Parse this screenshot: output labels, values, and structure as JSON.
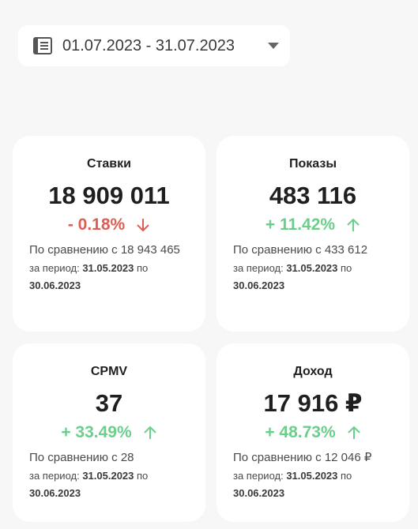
{
  "date_range": {
    "label": "01.07.2023 - 31.07.2023"
  },
  "cards": [
    {
      "title": "Ставки",
      "value": "18 909 011",
      "change": "- 0.18%",
      "trend": "down",
      "compare": "По сравнению с 18 943 465",
      "period_prefix": "за период: ",
      "period_from": "31.05.2023",
      "period_mid": " по ",
      "period_to": "30.06.2023"
    },
    {
      "title": "Показы",
      "value": "483 116",
      "change": "+ 11.42%",
      "trend": "up",
      "compare": "По сравнению с 433 612",
      "period_prefix": "за период: ",
      "period_from": "31.05.2023",
      "period_mid": " по ",
      "period_to": "30.06.2023"
    },
    {
      "title": "CPMV",
      "value": "37",
      "change": "+ 33.49%",
      "trend": "up",
      "compare": "По сравнению с 28",
      "period_prefix": "за период: ",
      "period_from": "31.05.2023",
      "period_mid": " по ",
      "period_to": "30.06.2023"
    },
    {
      "title": "Доход",
      "value": "17 916 ₽",
      "change": "+ 48.73%",
      "trend": "up",
      "compare": "По сравнению с 12 046 ₽",
      "period_prefix": "за период: ",
      "period_from": "31.05.2023",
      "period_mid": " по ",
      "period_to": "30.06.2023"
    }
  ],
  "colors": {
    "negative": "#e05d53",
    "positive": "#6bcf8c",
    "background": "#f7f7f7",
    "card": "#ffffff"
  },
  "icons": {
    "calendar": "calendar-icon",
    "caret": "caret-down-icon",
    "arrow_down": "arrow-down-icon",
    "arrow_up": "arrow-up-icon"
  }
}
